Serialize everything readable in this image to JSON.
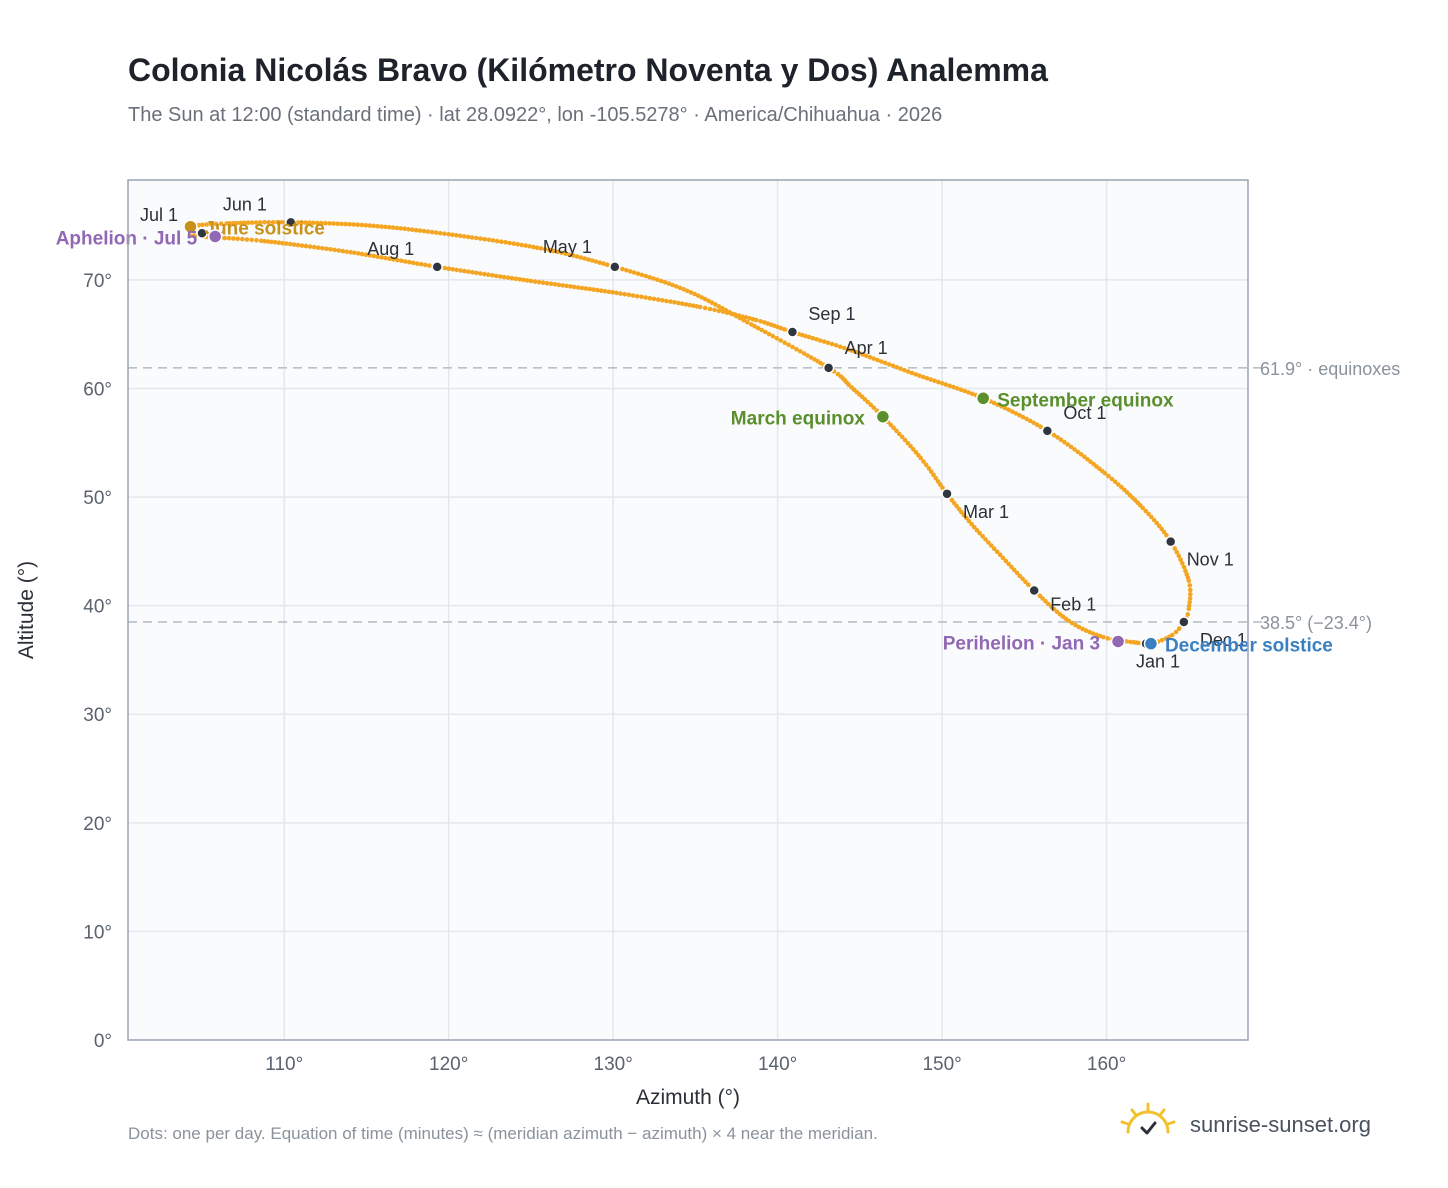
{
  "title": "Colonia Nicolás Bravo (Kilómetro Noventa y Dos) Analemma",
  "subtitle": "The Sun at 12:00 (standard time) · lat 28.0922°, lon -105.5278° · America/Chihuahua · 2026",
  "footnote": "Dots: one per day. Equation of time (minutes) ≈ (meridian azimuth − azimuth) × 4 near the meridian.",
  "brand": {
    "text": "sunrise-sunset.org",
    "logo_icon": "sun-check-icon",
    "logo_color": "#f2c12e"
  },
  "colors": {
    "path": "#f4a623",
    "month_dot": "#2f3640",
    "equinox": "#5a8f2c",
    "december_solstice": "#3a7fc1",
    "june_solstice": "#c8921a",
    "apsis": "#9267b4",
    "reference_line": "#b8c0ca",
    "plot_background": "#f9fbfd",
    "grid": "#e3e8ee"
  },
  "chart_data": {
    "type": "scatter",
    "xlabel": "Azimuth (°)",
    "ylabel": "Altitude (°)",
    "xlim": [
      100.5,
      168.6
    ],
    "ylim": [
      0,
      79.2
    ],
    "x_ticks": [
      110,
      120,
      130,
      140,
      150,
      160
    ],
    "x_tick_labels": [
      "110°",
      "120°",
      "130°",
      "140°",
      "150°",
      "160°"
    ],
    "y_ticks": [
      0,
      10,
      20,
      30,
      40,
      50,
      60,
      70
    ],
    "y_tick_labels": [
      "0°",
      "10°",
      "20°",
      "30°",
      "40°",
      "50°",
      "60°",
      "70°"
    ],
    "grid": true,
    "series": [
      {
        "kind": "analemma-path",
        "points": [
          [
            161.8,
            36.6
          ],
          [
            159.8,
            37.1
          ],
          [
            157.7,
            38.6
          ],
          [
            155.6,
            41.4
          ],
          [
            153.7,
            44.4
          ],
          [
            151.8,
            47.5
          ],
          [
            150.3,
            50.3
          ],
          [
            148.7,
            53.6
          ],
          [
            146.4,
            57.4
          ],
          [
            144.5,
            60.1
          ],
          [
            143.1,
            61.9
          ],
          [
            138.4,
            65.9
          ],
          [
            134.5,
            69.0
          ],
          [
            130.1,
            71.2
          ],
          [
            125.6,
            72.9
          ],
          [
            120.0,
            74.2
          ],
          [
            115.2,
            75.0
          ],
          [
            110.4,
            75.3
          ],
          [
            106.5,
            75.2
          ],
          [
            104.3,
            74.9
          ],
          [
            104.4,
            74.2
          ],
          [
            105.0,
            74.0
          ],
          [
            108.6,
            73.6
          ],
          [
            113.8,
            72.6
          ],
          [
            119.3,
            71.2
          ],
          [
            125.0,
            69.9
          ],
          [
            130.2,
            68.8
          ],
          [
            135.3,
            67.5
          ],
          [
            138.7,
            66.3
          ],
          [
            140.9,
            65.2
          ],
          [
            144.3,
            63.6
          ],
          [
            148.4,
            61.3
          ],
          [
            152.5,
            59.1
          ],
          [
            156.4,
            56.1
          ],
          [
            159.9,
            52.2
          ],
          [
            162.2,
            49.0
          ],
          [
            163.9,
            45.9
          ],
          [
            165.0,
            42.3
          ],
          [
            165.0,
            39.7
          ],
          [
            164.7,
            38.5
          ],
          [
            164.0,
            37.3
          ],
          [
            162.7,
            36.5
          ],
          [
            161.8,
            36.6
          ]
        ]
      }
    ],
    "month_markers": [
      {
        "label": "Jan 1",
        "x": 162.4,
        "y": 36.5
      },
      {
        "label": "Feb 1",
        "x": 155.6,
        "y": 41.4
      },
      {
        "label": "Mar 1",
        "x": 150.3,
        "y": 50.3
      },
      {
        "label": "Apr 1",
        "x": 143.1,
        "y": 61.9
      },
      {
        "label": "May 1",
        "x": 130.1,
        "y": 71.2
      },
      {
        "label": "Jun 1",
        "x": 110.4,
        "y": 75.3
      },
      {
        "label": "Jul 1",
        "x": 105.0,
        "y": 74.3
      },
      {
        "label": "Aug 1",
        "x": 119.3,
        "y": 71.2
      },
      {
        "label": "Sep 1",
        "x": 140.9,
        "y": 65.2
      },
      {
        "label": "Oct 1",
        "x": 156.4,
        "y": 56.1
      },
      {
        "label": "Nov 1",
        "x": 163.9,
        "y": 45.9
      },
      {
        "label": "Dec 1",
        "x": 164.7,
        "y": 38.5
      }
    ],
    "events": [
      {
        "label": "March equinox",
        "x": 146.4,
        "y": 57.4,
        "color": "#5a8f2c",
        "side": "left"
      },
      {
        "label": "September equinox",
        "x": 152.5,
        "y": 59.1,
        "color": "#5a8f2c",
        "side": "right"
      },
      {
        "label": "December solstice",
        "x": 162.7,
        "y": 36.5,
        "color": "#3a7fc1",
        "side": "right"
      },
      {
        "label": "June solstice",
        "x": 104.3,
        "y": 74.9,
        "color": "#c8921a",
        "side": "right"
      },
      {
        "label": "Perihelion · Jan 3",
        "x": 160.7,
        "y": 36.7,
        "color": "#9267b4",
        "side": "left"
      },
      {
        "label": "Aphelion · Jul 5",
        "x": 105.8,
        "y": 74.0,
        "color": "#9267b4",
        "side": "left"
      }
    ],
    "reference_lines": [
      {
        "label": "61.9° · equinoxes",
        "y": 61.9
      },
      {
        "label": "38.5° (−23.4°)",
        "y": 38.5
      }
    ]
  }
}
